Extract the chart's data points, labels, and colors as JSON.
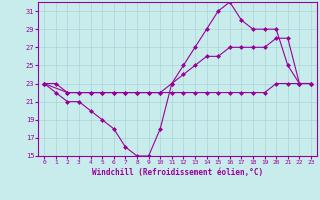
{
  "xlabel": "Windchill (Refroidissement éolien,°C)",
  "bg_color": "#c8ecec",
  "line_color": "#990099",
  "grid_color": "#aad4d4",
  "xlim": [
    -0.5,
    23.5
  ],
  "ylim": [
    15,
    32
  ],
  "yticks": [
    15,
    17,
    19,
    21,
    23,
    25,
    27,
    29,
    31
  ],
  "xticks": [
    0,
    1,
    2,
    3,
    4,
    5,
    6,
    7,
    8,
    9,
    10,
    11,
    12,
    13,
    14,
    15,
    16,
    17,
    18,
    19,
    20,
    21,
    22,
    23
  ],
  "line1_x": [
    0,
    1,
    2,
    3,
    4,
    5,
    6,
    7,
    8,
    9,
    10,
    11,
    12,
    13,
    14,
    15,
    16,
    17,
    18,
    19,
    20,
    21,
    22,
    23
  ],
  "line1_y": [
    23,
    22,
    21,
    21,
    20,
    19,
    18,
    16,
    15,
    15,
    18,
    23,
    25,
    27,
    29,
    31,
    32,
    30,
    29,
    29,
    29,
    25,
    23,
    23
  ],
  "line2_x": [
    0,
    2,
    3,
    4,
    5,
    6,
    7,
    8,
    9,
    10,
    11,
    12,
    13,
    14,
    15,
    16,
    17,
    18,
    19,
    20,
    21,
    22,
    23
  ],
  "line2_y": [
    23,
    22,
    22,
    22,
    22,
    22,
    22,
    22,
    22,
    22,
    23,
    24,
    25,
    26,
    26,
    27,
    27,
    27,
    27,
    28,
    28,
    23,
    23
  ],
  "line3_x": [
    0,
    1,
    2,
    3,
    4,
    5,
    6,
    7,
    8,
    9,
    10,
    11,
    12,
    13,
    14,
    15,
    16,
    17,
    18,
    19,
    20,
    21,
    22,
    23
  ],
  "line3_y": [
    23,
    23,
    22,
    22,
    22,
    22,
    22,
    22,
    22,
    22,
    22,
    22,
    22,
    22,
    22,
    22,
    22,
    22,
    22,
    22,
    23,
    23,
    23,
    23
  ]
}
